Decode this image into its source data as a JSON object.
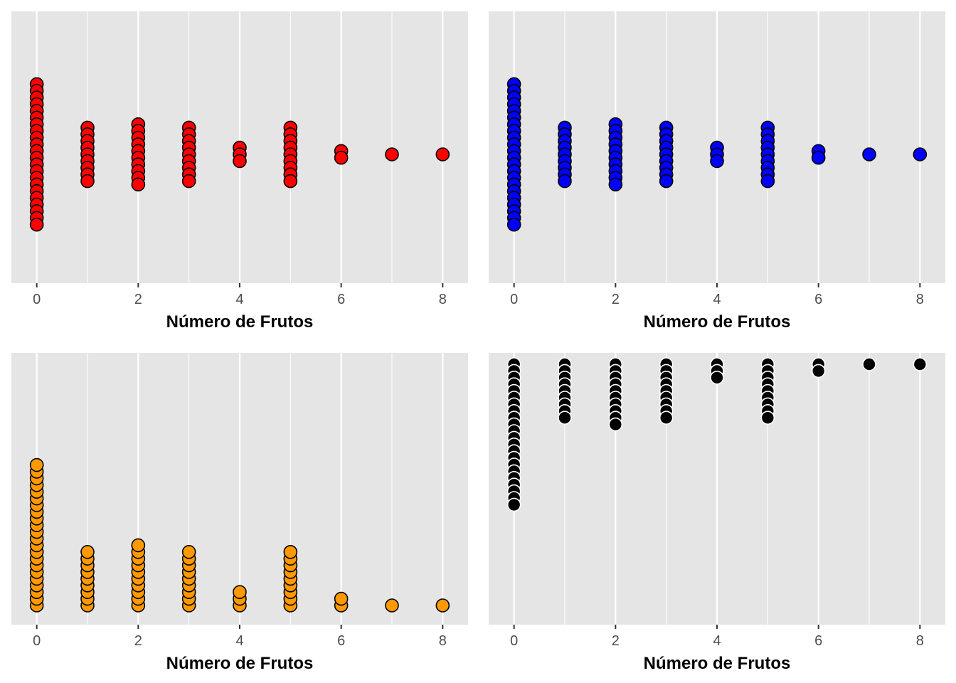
{
  "chart_data": [
    {
      "type": "dotplot",
      "stack": "center",
      "xlabel": "Número de Frutos",
      "xticks": [
        0,
        2,
        4,
        6,
        8
      ],
      "xlim": [
        -0.5,
        8.5
      ],
      "fill": "#ff0000",
      "stroke": "#000000",
      "x": [
        0,
        1,
        2,
        3,
        4,
        5,
        6,
        7,
        8
      ],
      "counts": [
        22,
        9,
        10,
        9,
        3,
        9,
        2,
        1,
        1
      ]
    },
    {
      "type": "dotplot",
      "stack": "center",
      "xlabel": "Número de Frutos",
      "xticks": [
        0,
        2,
        4,
        6,
        8
      ],
      "xlim": [
        -0.5,
        8.5
      ],
      "fill": "#0000ff",
      "stroke": "#000000",
      "x": [
        0,
        1,
        2,
        3,
        4,
        5,
        6,
        7,
        8
      ],
      "counts": [
        22,
        9,
        10,
        9,
        3,
        9,
        2,
        1,
        1
      ]
    },
    {
      "type": "dotplot",
      "stack": "up",
      "xlabel": "Número de Frutos",
      "xticks": [
        0,
        2,
        4,
        6,
        8
      ],
      "xlim": [
        -0.5,
        8.5
      ],
      "fill": "#ff9900",
      "stroke": "#000000",
      "x": [
        0,
        1,
        2,
        3,
        4,
        5,
        6,
        7,
        8
      ],
      "counts": [
        22,
        9,
        10,
        9,
        3,
        9,
        2,
        1,
        1
      ]
    },
    {
      "type": "dotplot",
      "stack": "down",
      "xlabel": "Número de Frutos",
      "xticks": [
        0,
        2,
        4,
        6,
        8
      ],
      "xlim": [
        -0.5,
        8.5
      ],
      "fill": "#000000",
      "stroke": "#ffffff",
      "x": [
        0,
        1,
        2,
        3,
        4,
        5,
        6,
        7,
        8
      ],
      "counts": [
        22,
        9,
        10,
        9,
        3,
        9,
        2,
        1,
        1
      ]
    }
  ]
}
